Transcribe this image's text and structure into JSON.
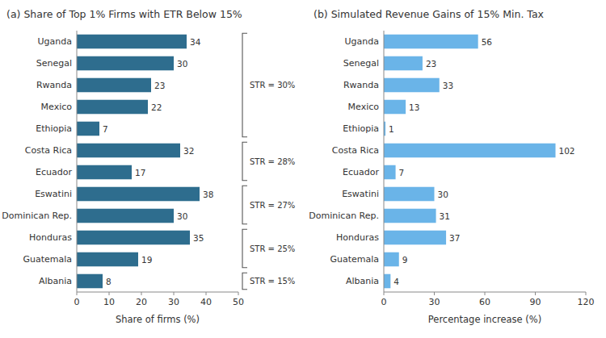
{
  "chart_data": [
    {
      "type": "bar",
      "orientation": "horizontal",
      "title": "(a) Share of Top 1% Firms with ETR Below 15%",
      "categories": [
        "Uganda",
        "Senegal",
        "Rwanda",
        "Mexico",
        "Ethiopia",
        "Costa Rica",
        "Ecuador",
        "Eswatini",
        "Dominican Rep.",
        "Honduras",
        "Guatemala",
        "Albania"
      ],
      "values": [
        34,
        30,
        23,
        22,
        7,
        32,
        17,
        38,
        30,
        35,
        19,
        8
      ],
      "color": "#2e6d8e",
      "xlabel": "Share of firms (%)",
      "xlim": [
        0,
        50
      ],
      "xticks": [
        0,
        10,
        20,
        30,
        40,
        50
      ],
      "grid": false,
      "data_labels": true,
      "annotations": [
        {
          "text": "STR = 30%",
          "from": "Uganda",
          "to": "Ethiopia"
        },
        {
          "text": "STR = 28%",
          "from": "Costa Rica",
          "to": "Ecuador"
        },
        {
          "text": "STR = 27%",
          "from": "Eswatini",
          "to": "Dominican Rep."
        },
        {
          "text": "STR = 25%",
          "from": "Honduras",
          "to": "Guatemala"
        },
        {
          "text": "STR = 15%",
          "from": "Albania",
          "to": "Albania"
        }
      ]
    },
    {
      "type": "bar",
      "orientation": "horizontal",
      "title": "(b) Simulated Revenue Gains of 15% Min. Tax",
      "categories": [
        "Uganda",
        "Senegal",
        "Rwanda",
        "Mexico",
        "Ethiopia",
        "Costa Rica",
        "Ecuador",
        "Eswatini",
        "Dominican Rep.",
        "Honduras",
        "Guatemala",
        "Albania"
      ],
      "values": [
        56,
        23,
        33,
        13,
        1,
        102,
        7,
        30,
        31,
        37,
        9,
        4
      ],
      "color": "#6ab4e8",
      "xlabel": "Percentage increase (%)",
      "xlim": [
        0,
        120
      ],
      "xticks": [
        0,
        30,
        60,
        90,
        120
      ],
      "grid": false,
      "data_labels": true
    }
  ]
}
